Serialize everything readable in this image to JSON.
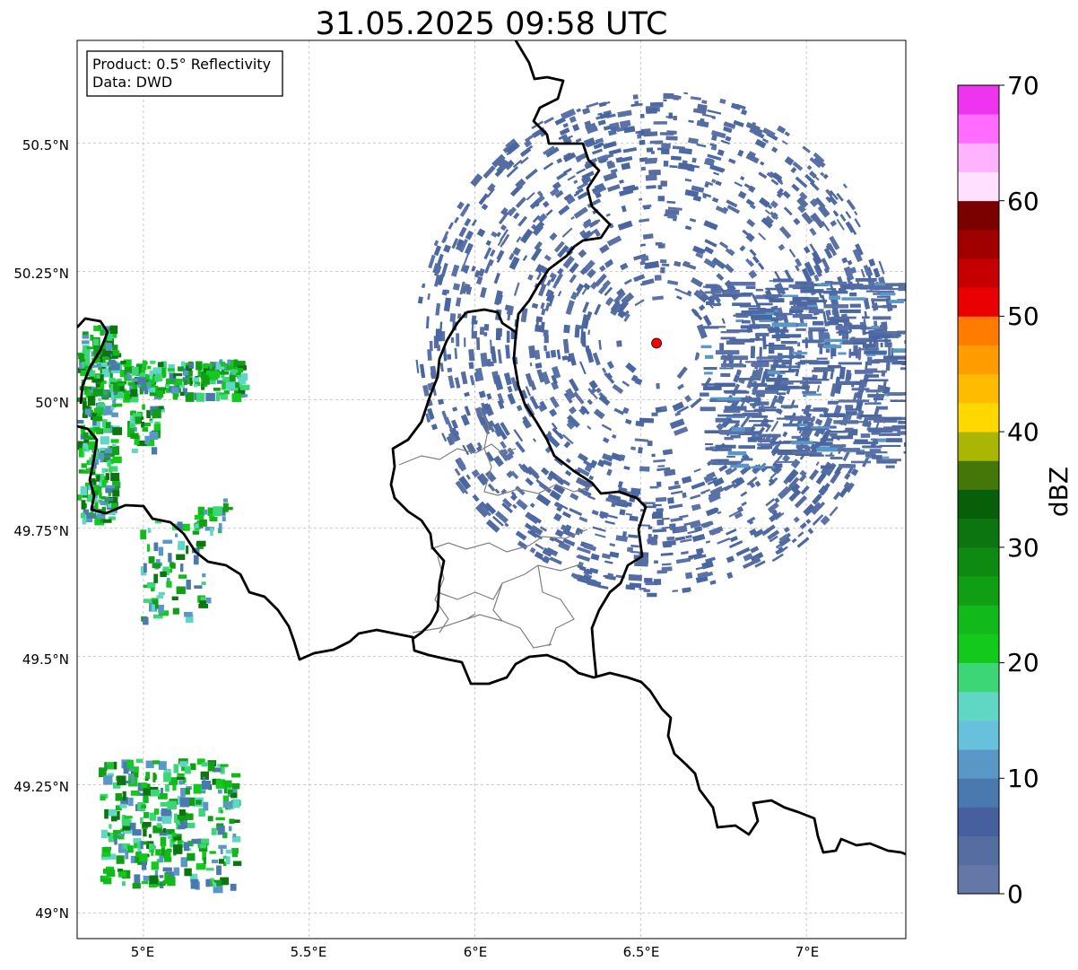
{
  "title": "31.05.2025 09:58 UTC",
  "info_box": {
    "product": "Product: 0.5° Reflectivity",
    "data_source": "Data: DWD"
  },
  "axes": {
    "x_ticks": [
      "5°E",
      "5.5°E",
      "6°E",
      "6.5°E",
      "7°E"
    ],
    "y_ticks": [
      "50.5°N",
      "50.25°N",
      "50°N",
      "49.75°N",
      "49.5°N",
      "49.25°N",
      "49°N"
    ]
  },
  "map": {
    "lon_range": [
      4.8,
      7.3
    ],
    "lat_range": [
      48.95,
      50.7
    ],
    "radar_site": {
      "lon": 6.548,
      "lat": 50.11
    },
    "radar_marker_color": "#ff0000",
    "border_color": "#000000",
    "region_line_color": "#808080",
    "grid": true
  },
  "colorbar": {
    "label": "dBZ",
    "tick_labels": [
      "0",
      "10",
      "20",
      "30",
      "40",
      "50",
      "60",
      "70"
    ],
    "range": [
      0,
      70
    ],
    "step": 2.5,
    "colors": [
      "#6577a6",
      "#566da2",
      "#465f9f",
      "#4a79b0",
      "#5897c6",
      "#68c1dc",
      "#60d6c4",
      "#3cd676",
      "#12c91c",
      "#12b91a",
      "#109e14",
      "#0e8a12",
      "#0c7510",
      "#085f0a",
      "#457609",
      "#aab504",
      "#ffd800",
      "#ffbb00",
      "#ff9c00",
      "#ff7c00",
      "#e90000",
      "#c60000",
      "#a00000",
      "#7b0000",
      "#ffe1ff",
      "#ffb3ff",
      "#ff6cff",
      "#ee34ee"
    ]
  }
}
